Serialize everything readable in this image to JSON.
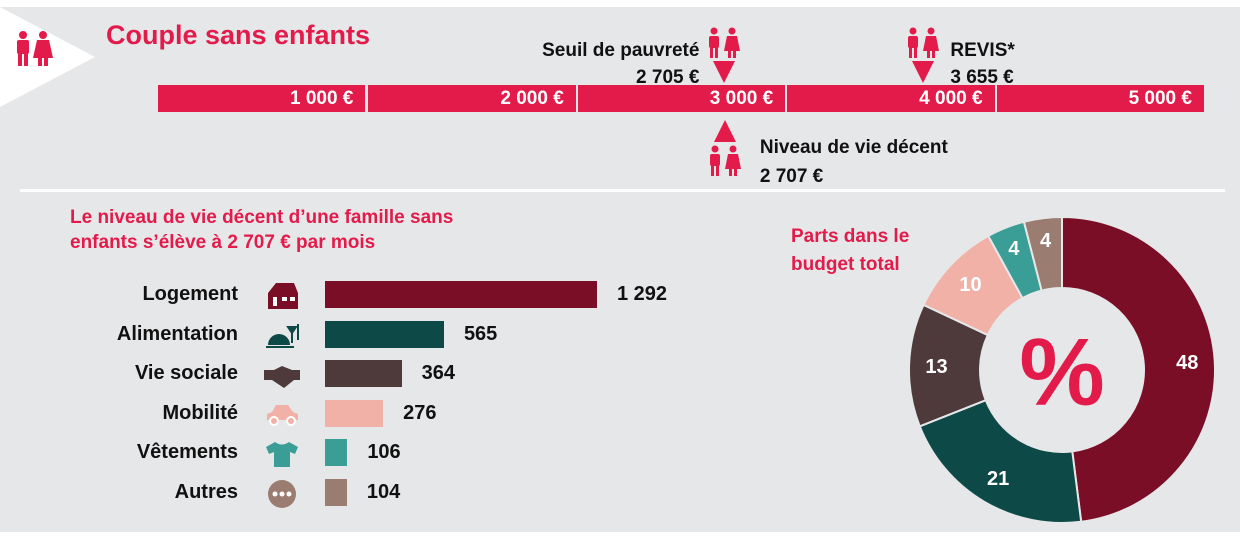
{
  "header": {
    "title": "Couple sans enfants",
    "icon": "couple-icon"
  },
  "scale": {
    "ticks": [
      "1 000 €",
      "2 000 €",
      "3 000 €",
      "4 000 €",
      "5 000 €"
    ],
    "tick_values": [
      1000,
      2000,
      3000,
      4000,
      5000
    ],
    "markers": [
      {
        "label": "Seuil de pauvreté",
        "value_label": "2 705 €",
        "value": 2705,
        "position": "above"
      },
      {
        "label": "REVIS*",
        "value_label": "3 655 €",
        "value": 3655,
        "position": "above"
      },
      {
        "label": "Niveau de vie décent",
        "value_label": "2 707 €",
        "value": 2707,
        "position": "below"
      }
    ]
  },
  "chart_data": [
    {
      "type": "bar",
      "orientation": "horizontal",
      "title": "Le niveau de vie décent d’une famille sans enfants s’élève à 2 707 € par mois",
      "title_lines": [
        "Le niveau de vie décent d’une famille sans",
        "enfants s’élève à 2 707 € par mois"
      ],
      "categories": [
        "Logement",
        "Alimentation",
        "Vie sociale",
        "Mobilité",
        "Vêtements",
        "Autres"
      ],
      "values": [
        1292,
        565,
        364,
        276,
        106,
        104
      ],
      "value_labels": [
        "1 292",
        "565",
        "364",
        "276",
        "106",
        "104"
      ],
      "icons": [
        "house-icon",
        "food-cloche-icon",
        "handshake-icon",
        "car-icon",
        "tshirt-icon",
        "more-dots-icon"
      ],
      "colors": [
        "#7a0e26",
        "#0d4a47",
        "#4e3a3a",
        "#f2b1a7",
        "#3a9e96",
        "#9a7c70"
      ]
    },
    {
      "type": "pie",
      "donut": true,
      "title_lines": [
        "Parts dans le",
        "budget total"
      ],
      "center_label": "%",
      "categories": [
        "Logement",
        "Alimentation",
        "Vie sociale",
        "Mobilité",
        "Vêtements",
        "Autres"
      ],
      "values": [
        48,
        21,
        13,
        10,
        4,
        4
      ],
      "colors": [
        "#7a0e26",
        "#0d4a47",
        "#4e3a3a",
        "#f2b1a7",
        "#3a9e96",
        "#9a7c70"
      ]
    }
  ],
  "colors": {
    "accent": "#e31b4b",
    "background": "#e6e7e9"
  }
}
